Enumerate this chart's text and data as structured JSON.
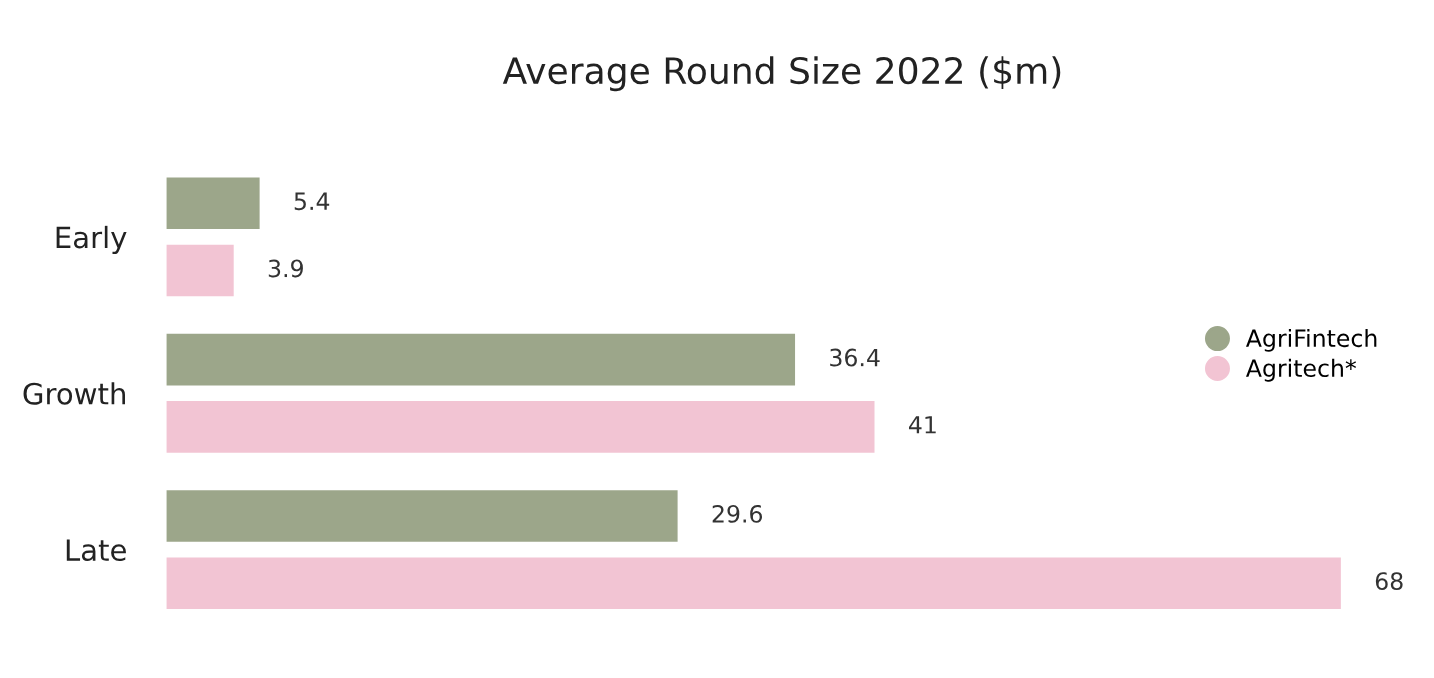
{
  "chart_data": {
    "type": "bar",
    "orientation": "horizontal",
    "title": "Average Round Size 2022 ($m)",
    "categories": [
      "Early",
      "Growth",
      "Late"
    ],
    "series": [
      {
        "name": "AgriFintech",
        "color": "#9ca68a",
        "values": [
          5.4,
          36.4,
          29.6
        ]
      },
      {
        "name": "Agritech*",
        "color": "#f2c4d3",
        "values": [
          3.9,
          41,
          68
        ]
      }
    ],
    "data_labels": true,
    "legend": "right",
    "marker": "circle",
    "grid": false
  }
}
